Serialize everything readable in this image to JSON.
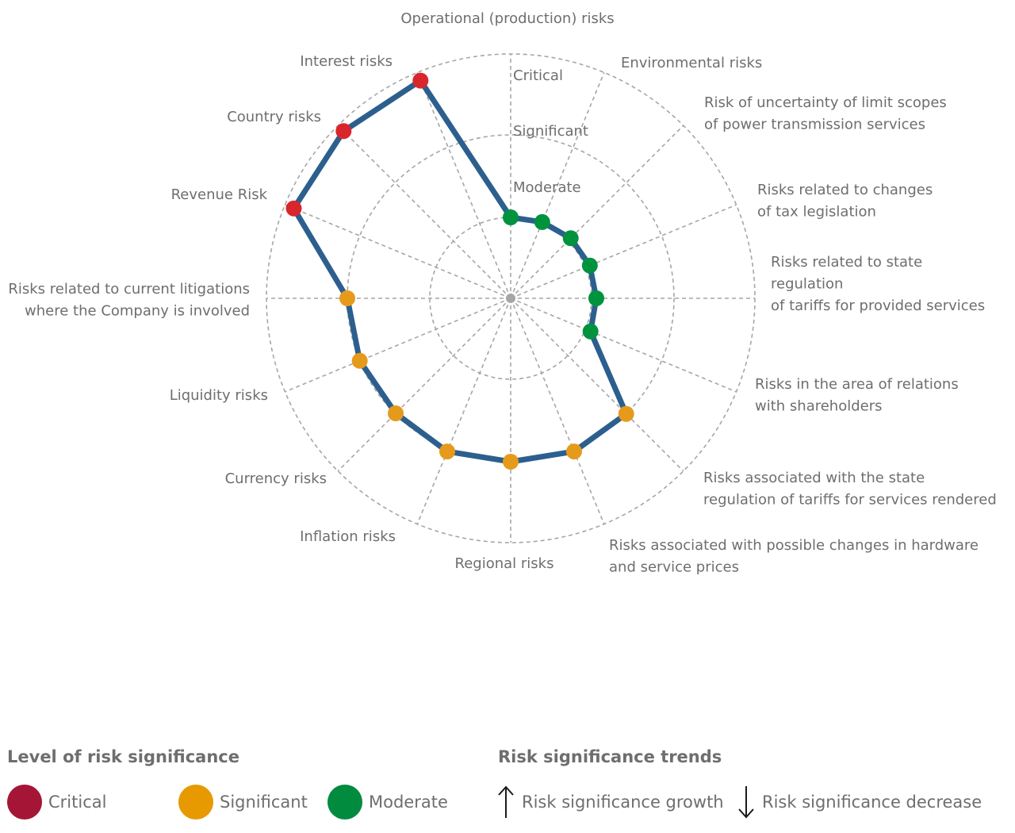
{
  "colors": {
    "critical": "#d9262d",
    "significant": "#e69a1c",
    "moderate": "#00933e",
    "line": "#2c5f8e",
    "grid": "#a6a6a6",
    "legend_critical": "#a51535",
    "legend_significant": "#e69a00",
    "legend_moderate": "#008b3f"
  },
  "chart_data": {
    "type": "radar",
    "levels": [
      "Moderate",
      "Significant",
      "Critical"
    ],
    "level_scale": [
      0,
      3
    ],
    "categories": [
      {
        "label": [
          "Operational (production) risks"
        ],
        "value": 1.0,
        "level": "moderate"
      },
      {
        "label": [
          "Environmental risks"
        ],
        "value": 1.0,
        "level": "moderate"
      },
      {
        "label": [
          "Risk of uncertainty of limit scopes",
          "of power transmission services"
        ],
        "value": 1.0,
        "level": "moderate"
      },
      {
        "label": [
          "Risks related to changes",
          "of tax legislation"
        ],
        "value": 1.0,
        "level": "moderate"
      },
      {
        "label": [
          "Risks related to state",
          "regulation",
          "of tariffs for provided services"
        ],
        "value": 1.0,
        "level": "moderate"
      },
      {
        "label": [
          "Risks in the area of relations",
          "with shareholders"
        ],
        "value": 1.0,
        "level": "moderate"
      },
      {
        "label": [
          "Risks associated with the state",
          "regulation of tariffs for services rendered"
        ],
        "value": 2.0,
        "level": "significant"
      },
      {
        "label": [
          "Risks associated with possible changes in hardware",
          "and service prices"
        ],
        "value": 2.0,
        "level": "significant"
      },
      {
        "label": [
          "Regional risks"
        ],
        "value": 2.0,
        "level": "significant"
      },
      {
        "label": [
          "Inflation risks"
        ],
        "value": 2.0,
        "level": "significant"
      },
      {
        "label": [
          "Currency risks"
        ],
        "value": 2.0,
        "level": "significant"
      },
      {
        "label": [
          "Liquidity risks"
        ],
        "value": 2.0,
        "level": "significant"
      },
      {
        "label": [
          "Risks related to current litigations",
          "where the Company is involved"
        ],
        "value": 2.0,
        "level": "significant"
      },
      {
        "label": [
          "Revenue Risk"
        ],
        "value": 3.0,
        "level": "critical"
      },
      {
        "label": [
          "Country risks"
        ],
        "value": 3.0,
        "level": "critical"
      },
      {
        "label": [
          "Interest risks"
        ],
        "value": 3.0,
        "level": "critical"
      }
    ]
  },
  "legend": {
    "significance_title": "Level of risk significance",
    "critical": "Critical",
    "significant": "Significant",
    "moderate": "Moderate",
    "trends_title": "Risk significance trends",
    "growth": "Risk significance growth",
    "decrease": "Risk significance decrease"
  }
}
